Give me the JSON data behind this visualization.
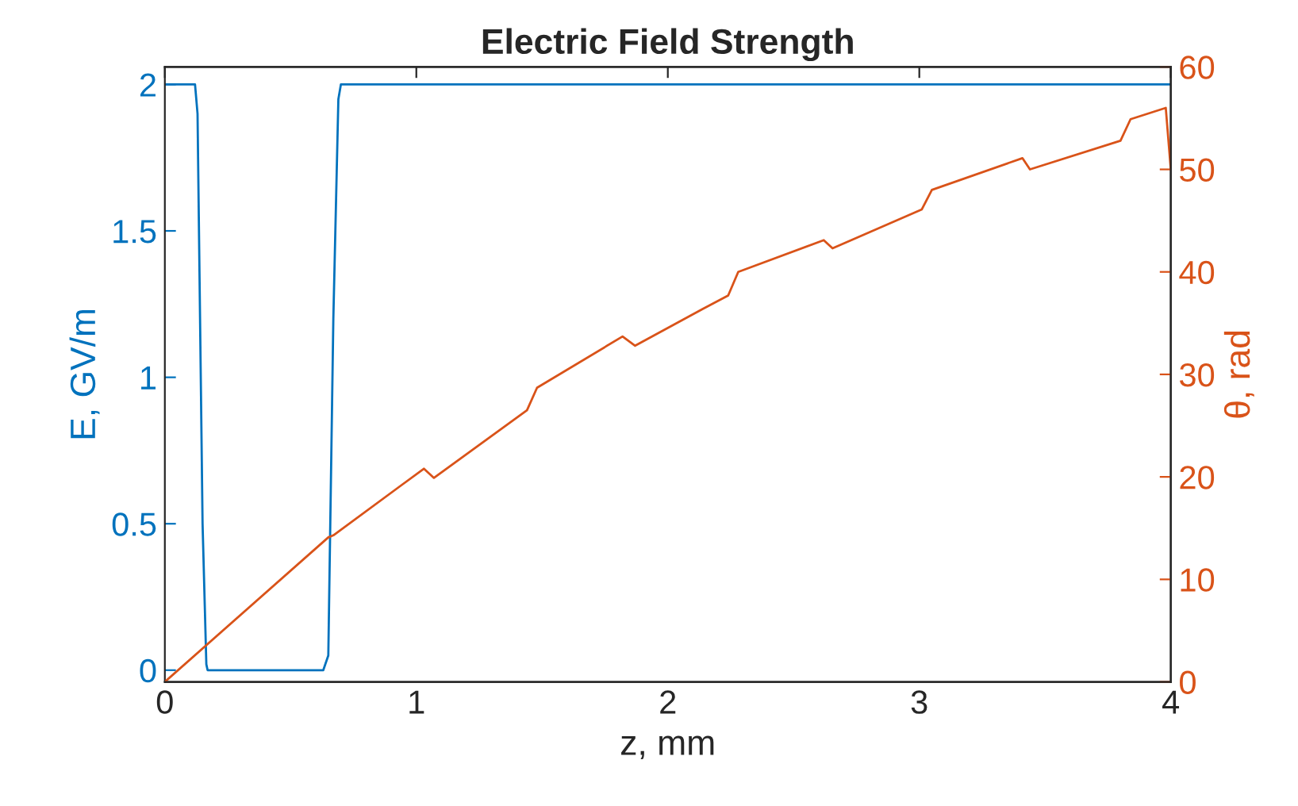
{
  "chart_data": {
    "type": "line",
    "title": "Electric Field Strength",
    "xlabel": "z, mm",
    "ylabel": "E, GV/m",
    "y2label": "θ, rad",
    "xlim": [
      0,
      4
    ],
    "xticks": [
      0,
      1,
      2,
      3,
      4
    ],
    "ylim": [
      -0.04,
      2.06
    ],
    "yticks": [
      0,
      0.5,
      1,
      1.5,
      2
    ],
    "y2lim": [
      0,
      60
    ],
    "y2ticks": [
      0,
      10,
      20,
      30,
      40,
      50,
      60
    ],
    "grid": false,
    "legend": false,
    "series": [
      {
        "color": "#0072bd",
        "x": [
          0,
          0.12,
          0.13,
          0.15,
          0.165,
          0.17,
          0.63,
          0.65,
          0.67,
          0.69,
          0.7,
          4
        ],
        "values": [
          2,
          2,
          1.9,
          0.5,
          0.02,
          0,
          0,
          0.05,
          1.2,
          1.95,
          2,
          2
        ]
      },
      {
        "color": "#d95319",
        "axis": "y2",
        "x": [
          0,
          0.65,
          0.67,
          1.03,
          1.07,
          1.44,
          1.48,
          1.82,
          1.87,
          2.14,
          2.24,
          2.28,
          2.62,
          2.655,
          3.01,
          3.05,
          3.41,
          3.44,
          3.8,
          3.84,
          3.98,
          4.0
        ],
        "values": [
          0,
          14.1,
          14.3,
          20.8,
          19.9,
          26.5,
          28.7,
          33.7,
          32.8,
          36.4,
          37.7,
          40,
          43.1,
          42.3,
          46.1,
          48.0,
          51.1,
          50.0,
          52.8,
          54.9,
          56.0,
          50
        ]
      }
    ]
  }
}
